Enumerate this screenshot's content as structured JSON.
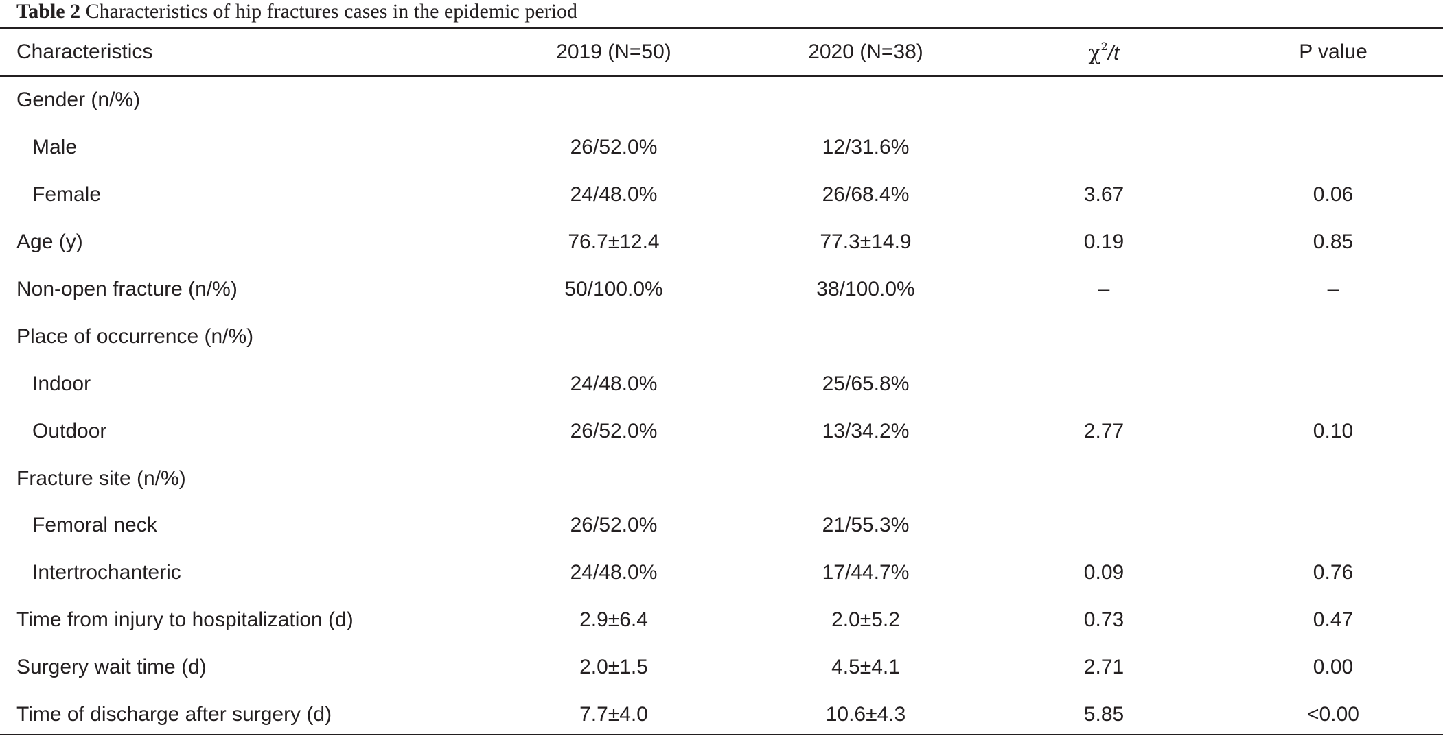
{
  "caption": {
    "label": "Table 2",
    "text": "Characteristics of hip fractures cases in the epidemic period"
  },
  "columns": {
    "characteristics": "Characteristics",
    "y2019": "2019 (N=50)",
    "y2020": "2020 (N=38)",
    "stat_symbol": "χ",
    "stat_sup": "2",
    "stat_suffix": "/t",
    "p_value": "P value"
  },
  "rows": [
    {
      "label": "Gender (n/%)",
      "y2019": "",
      "y2020": "",
      "stat": "",
      "p": "",
      "indent": false
    },
    {
      "label": "Male",
      "y2019": "26/52.0%",
      "y2020": "12/31.6%",
      "stat": "",
      "p": "",
      "indent": true
    },
    {
      "label": "Female",
      "y2019": "24/48.0%",
      "y2020": "26/68.4%",
      "stat": "3.67",
      "p": "0.06",
      "indent": true
    },
    {
      "label": "Age (y)",
      "y2019": "76.7±12.4",
      "y2020": "77.3±14.9",
      "stat": "0.19",
      "p": "0.85",
      "indent": false
    },
    {
      "label": "Non-open fracture (n/%)",
      "y2019": "50/100.0%",
      "y2020": "38/100.0%",
      "stat": "–",
      "p": "–",
      "indent": false
    },
    {
      "label": "Place of occurrence (n/%)",
      "y2019": "",
      "y2020": "",
      "stat": "",
      "p": "",
      "indent": false
    },
    {
      "label": "Indoor",
      "y2019": "24/48.0%",
      "y2020": "25/65.8%",
      "stat": "",
      "p": "",
      "indent": true
    },
    {
      "label": "Outdoor",
      "y2019": "26/52.0%",
      "y2020": "13/34.2%",
      "stat": "2.77",
      "p": "0.10",
      "indent": true
    },
    {
      "label": "Fracture site (n/%)",
      "y2019": "",
      "y2020": "",
      "stat": "",
      "p": "",
      "indent": false
    },
    {
      "label": "Femoral neck",
      "y2019": "26/52.0%",
      "y2020": "21/55.3%",
      "stat": "",
      "p": "",
      "indent": true
    },
    {
      "label": "Intertrochanteric",
      "y2019": "24/48.0%",
      "y2020": "17/44.7%",
      "stat": "0.09",
      "p": "0.76",
      "indent": true
    },
    {
      "label": "Time from injury to hospitalization (d)",
      "y2019": "2.9±6.4",
      "y2020": "2.0±5.2",
      "stat": "0.73",
      "p": "0.47",
      "indent": false
    },
    {
      "label": "Surgery wait time (d)",
      "y2019": "2.0±1.5",
      "y2020": "4.5±4.1",
      "stat": "2.71",
      "p": "0.00",
      "indent": false
    },
    {
      "label": "Time of discharge after surgery (d)",
      "y2019": "7.7±4.0",
      "y2020": "10.6±4.3",
      "stat": "5.85",
      "p": "<0.00",
      "indent": false
    }
  ]
}
